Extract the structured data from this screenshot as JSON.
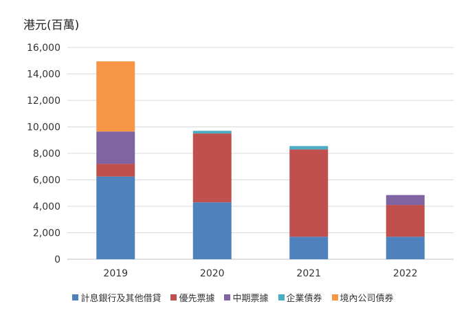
{
  "chart_data": {
    "type": "bar",
    "stacked": true,
    "ylabel": "港元(百萬)",
    "categories": [
      "2019",
      "2020",
      "2021",
      "2022"
    ],
    "ylim": [
      0,
      16000
    ],
    "yticks": [
      0,
      2000,
      4000,
      6000,
      8000,
      10000,
      12000,
      14000,
      16000
    ],
    "ytick_labels": [
      "0",
      "2,000",
      "4,000",
      "6,000",
      "8,000",
      "10,000",
      "12,000",
      "14,000",
      "16,000"
    ],
    "grid": true,
    "legend_position": "bottom",
    "series": [
      {
        "name": "計息銀行及其他借貸",
        "color": "#4f81bd",
        "values": [
          6250,
          4300,
          1700,
          1700
        ]
      },
      {
        "name": "優先票據",
        "color": "#c0504d",
        "values": [
          950,
          5200,
          6600,
          2400
        ]
      },
      {
        "name": "中期票據",
        "color": "#8064a2",
        "values": [
          2450,
          0,
          0,
          750
        ]
      },
      {
        "name": "企業債券",
        "color": "#4bacc6",
        "values": [
          0,
          200,
          250,
          0
        ]
      },
      {
        "name": "境內公司債券",
        "color": "#f79646",
        "values": [
          5300,
          0,
          0,
          0
        ]
      }
    ]
  }
}
